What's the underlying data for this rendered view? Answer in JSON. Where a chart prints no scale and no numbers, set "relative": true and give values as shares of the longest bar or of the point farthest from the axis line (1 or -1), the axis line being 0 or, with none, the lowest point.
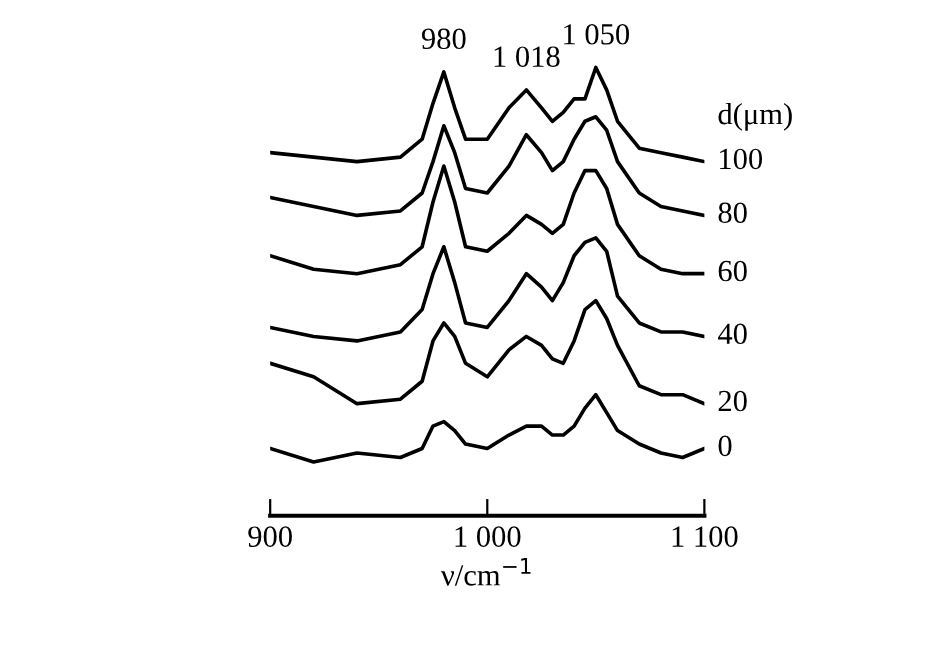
{
  "chart_data": {
    "type": "line",
    "relative": true,
    "xlabel": "ν/cm$^{−1}$",
    "legend_title": "d(μm)",
    "legend": false,
    "tick_labels": "x",
    "grid": false,
    "marker": "none",
    "line_style": "solid",
    "xlim": [
      900,
      1100
    ],
    "xticks": [
      900,
      {
        "value": 1000,
        "label": "1 000"
      },
      {
        "value": 1100,
        "label": "1 100"
      }
    ],
    "x": [
      900,
      920,
      940,
      960,
      970,
      975,
      980,
      985,
      990,
      1000,
      1010,
      1018,
      1025,
      1030,
      1035,
      1040,
      1045,
      1050,
      1055,
      1060,
      1070,
      1080,
      1090,
      1100
    ],
    "series": [
      {
        "name": "100",
        "color": "#000000",
        "values": [
          0.81,
          0.8,
          0.79,
          0.8,
          0.84,
          0.92,
          0.99,
          0.91,
          0.84,
          0.84,
          0.91,
          0.95,
          0.91,
          0.88,
          0.9,
          0.93,
          0.93,
          1.0,
          0.95,
          0.88,
          0.82,
          0.81,
          0.8,
          0.79
        ]
      },
      {
        "name": "80",
        "color": "#000000",
        "values": [
          0.71,
          0.69,
          0.67,
          0.68,
          0.72,
          0.79,
          0.87,
          0.81,
          0.73,
          0.72,
          0.78,
          0.85,
          0.81,
          0.77,
          0.79,
          0.84,
          0.88,
          0.89,
          0.86,
          0.79,
          0.72,
          0.69,
          0.68,
          0.67
        ]
      },
      {
        "name": "60",
        "color": "#000000",
        "values": [
          0.58,
          0.55,
          0.54,
          0.56,
          0.6,
          0.7,
          0.78,
          0.7,
          0.6,
          0.59,
          0.63,
          0.67,
          0.65,
          0.63,
          0.65,
          0.72,
          0.77,
          0.77,
          0.73,
          0.65,
          0.58,
          0.55,
          0.54,
          0.54
        ]
      },
      {
        "name": "40",
        "color": "#000000",
        "values": [
          0.42,
          0.4,
          0.39,
          0.41,
          0.46,
          0.54,
          0.6,
          0.52,
          0.43,
          0.42,
          0.48,
          0.54,
          0.51,
          0.48,
          0.52,
          0.58,
          0.61,
          0.62,
          0.59,
          0.49,
          0.43,
          0.41,
          0.41,
          0.4
        ]
      },
      {
        "name": "20",
        "color": "#000000",
        "values": [
          0.34,
          0.31,
          0.25,
          0.26,
          0.3,
          0.39,
          0.43,
          0.4,
          0.34,
          0.31,
          0.37,
          0.4,
          0.38,
          0.35,
          0.34,
          0.39,
          0.46,
          0.48,
          0.44,
          0.38,
          0.29,
          0.27,
          0.27,
          0.25
        ]
      },
      {
        "name": "0",
        "color": "#000000",
        "values": [
          0.15,
          0.12,
          0.14,
          0.13,
          0.15,
          0.2,
          0.21,
          0.19,
          0.16,
          0.15,
          0.18,
          0.2,
          0.2,
          0.18,
          0.18,
          0.2,
          0.24,
          0.27,
          0.23,
          0.19,
          0.16,
          0.14,
          0.13,
          0.15
        ]
      }
    ],
    "annotations": [
      {
        "text": "980",
        "x": 980,
        "y": 0.99
      },
      {
        "text": "1 018",
        "x": 1018,
        "y": 0.95
      },
      {
        "text": "1 050",
        "x": 1050,
        "y": 1.0
      }
    ]
  }
}
